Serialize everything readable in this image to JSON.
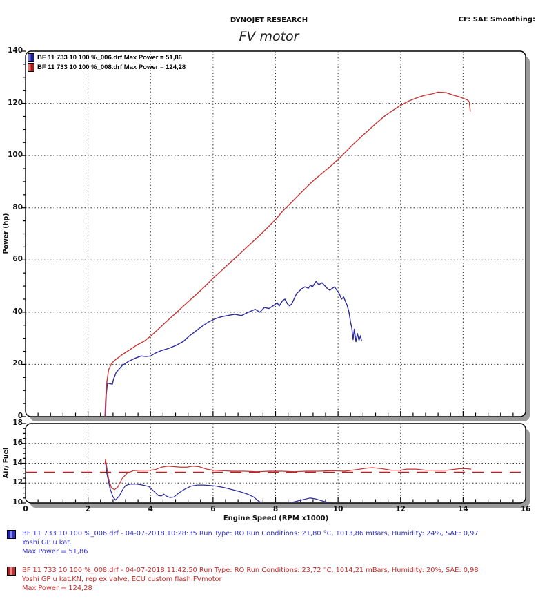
{
  "header": {
    "brand": "DYNOJET RESEARCH",
    "cf_label": "CF: SAE  Smoothing:",
    "title": "FV motor"
  },
  "legend": [
    {
      "color": "blue",
      "label": "BF 11 733 10 100 %_006.drf Max Power = 51,86"
    },
    {
      "color": "red",
      "label": "BF 11 733 10 100 %_008.drf Max Power = 124,28"
    }
  ],
  "colors": {
    "blue_curve": "#2b2b9e",
    "red_curve": "#c53535",
    "target_line": "#b22222",
    "grid": "#333333",
    "panel_shadow": "#9a9a9a"
  },
  "chart_data": [
    {
      "type": "line",
      "title": "Power vs Engine Speed",
      "xlabel": "Engine Speed (RPM x1000)",
      "ylabel": "Power (hp)",
      "xlim": [
        0,
        16
      ],
      "ylim": [
        0,
        140
      ],
      "x_ticks": [
        0,
        2,
        4,
        6,
        8,
        10,
        12,
        14,
        16
      ],
      "y_ticks": [
        0,
        20,
        40,
        60,
        80,
        100,
        120,
        140
      ],
      "x_gridlines": [
        2,
        4,
        6,
        8,
        10,
        12,
        14
      ],
      "y_gridlines": [
        20,
        40,
        60,
        80,
        100,
        120
      ],
      "y_major_step": 20,
      "y_minor_step": 5,
      "grid": true,
      "legend_position": "top-left",
      "series": [
        {
          "name": "BF 11 733 10 100 %_006.drf",
          "max_power": "51,86",
          "color": "#2b2b9e",
          "points": [
            [
              2.56,
              0
            ],
            [
              2.58,
              8
            ],
            [
              2.62,
              12.8
            ],
            [
              2.7,
              12.6
            ],
            [
              2.78,
              12.4
            ],
            [
              2.82,
              14.5
            ],
            [
              2.9,
              16.9
            ],
            [
              3.0,
              18.3
            ],
            [
              3.1,
              19.6
            ],
            [
              3.3,
              21.2
            ],
            [
              3.5,
              22.3
            ],
            [
              3.7,
              23.2
            ],
            [
              3.85,
              23.0
            ],
            [
              4.0,
              23.2
            ],
            [
              4.15,
              24.3
            ],
            [
              4.35,
              25.3
            ],
            [
              4.6,
              26.2
            ],
            [
              4.8,
              27.2
            ],
            [
              5.05,
              28.8
            ],
            [
              5.25,
              31.0
            ],
            [
              5.45,
              32.8
            ],
            [
              5.65,
              34.6
            ],
            [
              5.85,
              36.2
            ],
            [
              6.05,
              37.4
            ],
            [
              6.25,
              38.2
            ],
            [
              6.5,
              38.8
            ],
            [
              6.7,
              39.2
            ],
            [
              6.91,
              38.7
            ],
            [
              7.13,
              40.0
            ],
            [
              7.35,
              41.1
            ],
            [
              7.5,
              40.0
            ],
            [
              7.64,
              41.8
            ],
            [
              7.79,
              41.4
            ],
            [
              7.94,
              42.6
            ],
            [
              8.05,
              43.6
            ],
            [
              8.12,
              42.4
            ],
            [
              8.23,
              44.5
            ],
            [
              8.3,
              45.0
            ],
            [
              8.38,
              43.2
            ],
            [
              8.45,
              42.4
            ],
            [
              8.52,
              43.2
            ],
            [
              8.67,
              47.1
            ],
            [
              8.83,
              48.9
            ],
            [
              8.94,
              49.7
            ],
            [
              9.05,
              49.2
            ],
            [
              9.12,
              50.3
            ],
            [
              9.18,
              49.7
            ],
            [
              9.3,
              51.86
            ],
            [
              9.38,
              50.5
            ],
            [
              9.49,
              51.3
            ],
            [
              9.56,
              50.3
            ],
            [
              9.67,
              48.9
            ],
            [
              9.74,
              48.4
            ],
            [
              9.82,
              49.2
            ],
            [
              9.89,
              49.7
            ],
            [
              9.96,
              48.4
            ],
            [
              10.04,
              47.1
            ],
            [
              10.11,
              45.0
            ],
            [
              10.18,
              45.8
            ],
            [
              10.24,
              44.0
            ],
            [
              10.29,
              42.6
            ],
            [
              10.35,
              40.0
            ],
            [
              10.4,
              36.1
            ],
            [
              10.44,
              33.9
            ],
            [
              10.48,
              29.5
            ],
            [
              10.52,
              33.5
            ],
            [
              10.57,
              28.7
            ],
            [
              10.62,
              31.8
            ],
            [
              10.67,
              29.2
            ],
            [
              10.72,
              31.0
            ],
            [
              10.75,
              29.0
            ]
          ]
        },
        {
          "name": "BF 11 733 10 100 %_008.drf",
          "max_power": "124,28",
          "color": "#c53535",
          "points": [
            [
              2.54,
              0
            ],
            [
              2.56,
              6
            ],
            [
              2.6,
              13
            ],
            [
              2.66,
              18
            ],
            [
              2.76,
              20.5
            ],
            [
              2.9,
              22
            ],
            [
              3.1,
              23.8
            ],
            [
              3.3,
              25.3
            ],
            [
              3.55,
              27.3
            ],
            [
              3.8,
              28.9
            ],
            [
              4.0,
              30.8
            ],
            [
              4.25,
              33.5
            ],
            [
              4.5,
              36.3
            ],
            [
              4.75,
              39
            ],
            [
              5.0,
              41.8
            ],
            [
              5.25,
              44.5
            ],
            [
              5.5,
              47.2
            ],
            [
              5.75,
              50
            ],
            [
              6.0,
              53
            ],
            [
              6.25,
              55.7
            ],
            [
              6.5,
              58.5
            ],
            [
              6.75,
              61.2
            ],
            [
              7.0,
              64
            ],
            [
              7.25,
              66.8
            ],
            [
              7.5,
              69.5
            ],
            [
              7.75,
              72.5
            ],
            [
              8.0,
              75.5
            ],
            [
              8.25,
              79
            ],
            [
              8.5,
              82
            ],
            [
              8.75,
              85
            ],
            [
              9.0,
              88
            ],
            [
              9.25,
              90.8
            ],
            [
              9.5,
              93.3
            ],
            [
              9.75,
              95.8
            ],
            [
              10.0,
              98.5
            ],
            [
              10.25,
              101.5
            ],
            [
              10.5,
              104.5
            ],
            [
              10.75,
              107.3
            ],
            [
              11.0,
              110
            ],
            [
              11.25,
              112.7
            ],
            [
              11.5,
              115.2
            ],
            [
              11.75,
              117.3
            ],
            [
              12.0,
              119.2
            ],
            [
              12.25,
              120.8
            ],
            [
              12.5,
              122
            ],
            [
              12.75,
              123
            ],
            [
              13.0,
              123.6
            ],
            [
              13.2,
              124.28
            ],
            [
              13.45,
              124.1
            ],
            [
              13.7,
              123.1
            ],
            [
              13.9,
              122.4
            ],
            [
              14.05,
              121.7
            ],
            [
              14.15,
              121.2
            ],
            [
              14.2,
              120.5
            ],
            [
              14.23,
              117
            ]
          ]
        }
      ]
    },
    {
      "type": "line",
      "title": "Air/Fuel vs Engine Speed",
      "xlabel": "Engine Speed (RPM x1000)",
      "ylabel": "Air/ Fuel",
      "xlim": [
        0,
        16
      ],
      "ylim": [
        10,
        18
      ],
      "x_ticks": [
        0,
        2,
        4,
        6,
        8,
        10,
        12,
        14,
        16
      ],
      "y_ticks": [
        10,
        12,
        14,
        16,
        18
      ],
      "x_gridlines": [
        2,
        4,
        6,
        8,
        10,
        12,
        14
      ],
      "y_gridlines": [
        12,
        14,
        16
      ],
      "y_major_step": 2,
      "y_minor_step": 0.5,
      "grid": true,
      "reference_line": {
        "value": 13.1,
        "style": "dashed",
        "color": "#b22222"
      },
      "series": [
        {
          "name": "BF 11 733 10 100 %_006.drf",
          "color": "#2b2b9e",
          "points": [
            [
              2.56,
              14.2
            ],
            [
              2.6,
              13
            ],
            [
              2.7,
              11.5
            ],
            [
              2.8,
              10.6
            ],
            [
              2.88,
              10.3
            ],
            [
              3.0,
              10.7
            ],
            [
              3.1,
              11.3
            ],
            [
              3.2,
              11.75
            ],
            [
              3.35,
              11.9
            ],
            [
              3.55,
              11.9
            ],
            [
              3.75,
              11.8
            ],
            [
              3.95,
              11.65
            ],
            [
              4.1,
              11.2
            ],
            [
              4.25,
              10.75
            ],
            [
              4.35,
              10.7
            ],
            [
              4.42,
              10.9
            ],
            [
              4.5,
              10.7
            ],
            [
              4.62,
              10.55
            ],
            [
              4.75,
              10.6
            ],
            [
              4.9,
              11.0
            ],
            [
              5.1,
              11.4
            ],
            [
              5.3,
              11.7
            ],
            [
              5.5,
              11.8
            ],
            [
              5.7,
              11.8
            ],
            [
              5.9,
              11.75
            ],
            [
              6.1,
              11.7
            ],
            [
              6.35,
              11.55
            ],
            [
              6.6,
              11.35
            ],
            [
              6.85,
              11.15
            ],
            [
              7.1,
              10.9
            ],
            [
              7.3,
              10.6
            ],
            [
              7.45,
              10.2
            ],
            [
              7.55,
              10.02
            ],
            [
              8.0,
              10.02
            ],
            [
              8.5,
              10.05
            ],
            [
              8.7,
              10.2
            ],
            [
              8.9,
              10.35
            ],
            [
              9.1,
              10.5
            ],
            [
              9.3,
              10.4
            ],
            [
              9.5,
              10.2
            ],
            [
              9.7,
              10.05
            ],
            [
              9.9,
              10.02
            ],
            [
              10.3,
              10.02
            ],
            [
              10.65,
              10.02
            ]
          ]
        },
        {
          "name": "BF 11 733 10 100 %_008.drf",
          "color": "#c53535",
          "points": [
            [
              2.54,
              13.9
            ],
            [
              2.56,
              14.4
            ],
            [
              2.6,
              13.6
            ],
            [
              2.66,
              12.4
            ],
            [
              2.75,
              11.5
            ],
            [
              2.85,
              11.35
            ],
            [
              2.95,
              11.6
            ],
            [
              3.1,
              12.5
            ],
            [
              3.25,
              13.0
            ],
            [
              3.45,
              13.25
            ],
            [
              3.7,
              13.3
            ],
            [
              4.0,
              13.3
            ],
            [
              4.15,
              13.35
            ],
            [
              4.35,
              13.6
            ],
            [
              4.55,
              13.7
            ],
            [
              4.75,
              13.65
            ],
            [
              4.95,
              13.6
            ],
            [
              5.15,
              13.6
            ],
            [
              5.35,
              13.7
            ],
            [
              5.55,
              13.65
            ],
            [
              5.8,
              13.4
            ],
            [
              6.0,
              13.3
            ],
            [
              6.3,
              13.25
            ],
            [
              6.6,
              13.2
            ],
            [
              7.0,
              13.2
            ],
            [
              7.4,
              13.15
            ],
            [
              7.8,
              13.2
            ],
            [
              8.2,
              13.2
            ],
            [
              8.6,
              13.15
            ],
            [
              9.0,
              13.2
            ],
            [
              9.4,
              13.2
            ],
            [
              9.8,
              13.25
            ],
            [
              10.2,
              13.2
            ],
            [
              10.6,
              13.35
            ],
            [
              10.9,
              13.5
            ],
            [
              11.1,
              13.55
            ],
            [
              11.4,
              13.45
            ],
            [
              11.7,
              13.3
            ],
            [
              12.0,
              13.3
            ],
            [
              12.2,
              13.4
            ],
            [
              12.5,
              13.4
            ],
            [
              12.8,
              13.3
            ],
            [
              13.2,
              13.3
            ],
            [
              13.5,
              13.3
            ],
            [
              13.9,
              13.45
            ],
            [
              14.1,
              13.45
            ],
            [
              14.25,
              13.4
            ]
          ]
        }
      ]
    }
  ],
  "runs": [
    {
      "color": "blue",
      "lines": [
        "BF 11 733 10 100 %_006.drf - 04-07-2018 10:28:35  Run Type: RO  Run Conditions: 21,80 °C, 1013,86 mBars,  Humidity:  24%, SAE: 0,97",
        "Yoshi GP u kat.",
        "Max Power = 51,86"
      ]
    },
    {
      "color": "red",
      "lines": [
        "BF 11 733 10 100 %_008.drf - 04-07-2018 11:42:50  Run Type: RO  Run Conditions: 23,72 °C, 1014,21 mBars,  Humidity:  20%, SAE: 0,98",
        "Yoshi GP u kat.KN, rep ex valve, ECU custom flash FVmotor",
        "Max Power = 124,28"
      ]
    }
  ]
}
